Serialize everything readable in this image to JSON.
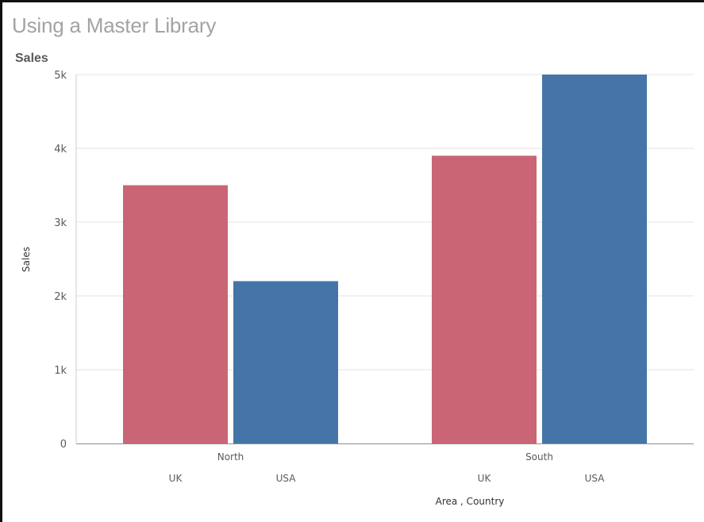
{
  "app": {
    "title": "Using a Master Library"
  },
  "chart_data": {
    "type": "bar",
    "title": "Sales",
    "xlabel": "Area , Country",
    "ylabel": "Sales",
    "ylim": [
      0,
      5000
    ],
    "yticks": [
      0,
      1000,
      2000,
      3000,
      4000,
      5000
    ],
    "ytick_labels": [
      "0",
      "1k",
      "2k",
      "3k",
      "4k",
      "5k"
    ],
    "grid": true,
    "groups": [
      {
        "name": "North",
        "bars": [
          {
            "category": "UK",
            "value": 3500,
            "color": "#c96574"
          },
          {
            "category": "USA",
            "value": 2200,
            "color": "#4575a8"
          }
        ]
      },
      {
        "name": "South",
        "bars": [
          {
            "category": "UK",
            "value": 3900,
            "color": "#c96574"
          },
          {
            "category": "USA",
            "value": 5000,
            "color": "#4575a8"
          }
        ]
      }
    ]
  }
}
